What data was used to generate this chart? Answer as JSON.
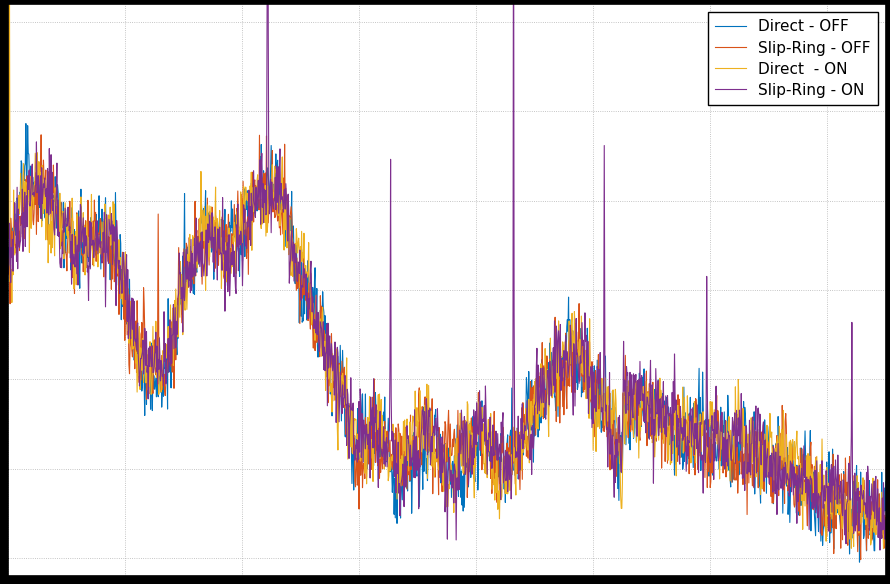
{
  "legend_labels": [
    "Direct - OFF",
    "Slip-Ring - OFF",
    "Direct  - ON",
    "Slip-Ring - ON"
  ],
  "legend_colors": [
    "#0072BD",
    "#D95319",
    "#EDB120",
    "#7E2F8E"
  ],
  "background_color": "#ffffff",
  "outer_background": "#000000",
  "grid_color": "#aaaaaa",
  "grid_linestyle": ":",
  "n_points": 1500,
  "figsize": [
    8.9,
    5.84
  ],
  "dpi": 100,
  "ylim_low": 0.08,
  "ylim_high": 0.72,
  "legend_fontsize": 11
}
